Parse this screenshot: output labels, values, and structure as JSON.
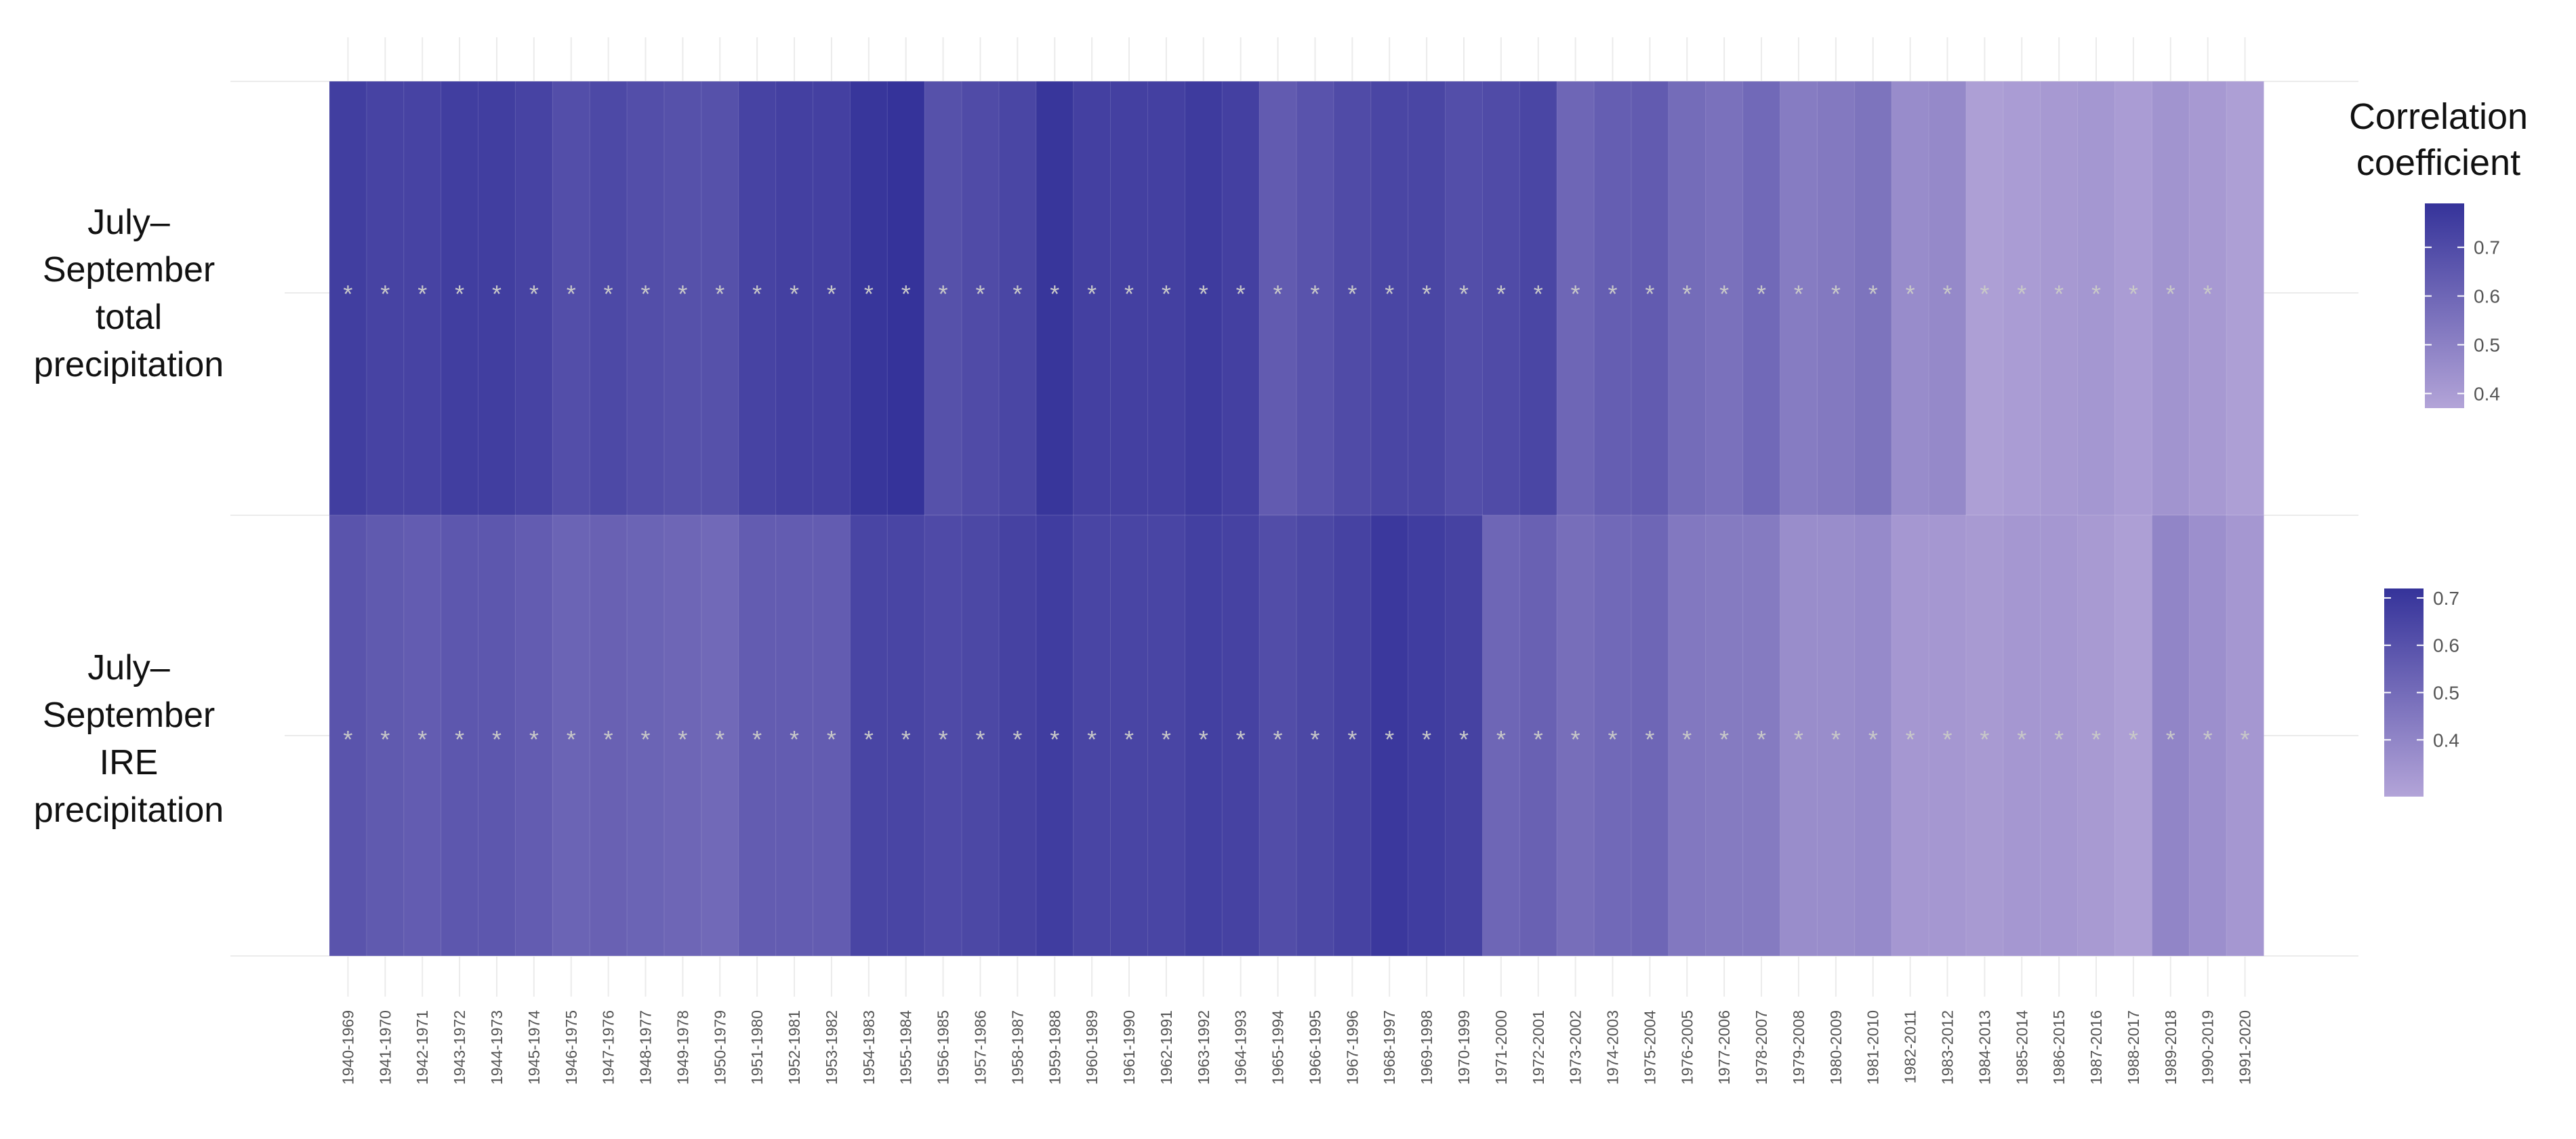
{
  "chart_data": {
    "type": "heatmap",
    "x_labels": [
      "1940-1969",
      "1941-1970",
      "1942-1971",
      "1943-1972",
      "1944-1973",
      "1945-1974",
      "1946-1975",
      "1947-1976",
      "1948-1977",
      "1949-1978",
      "1950-1979",
      "1951-1980",
      "1952-1981",
      "1953-1982",
      "1954-1983",
      "1955-1984",
      "1956-1985",
      "1957-1986",
      "1958-1987",
      "1959-1988",
      "1960-1989",
      "1961-1990",
      "1962-1991",
      "1963-1992",
      "1964-1993",
      "1965-1994",
      "1966-1995",
      "1967-1996",
      "1968-1997",
      "1969-1998",
      "1970-1999",
      "1971-2000",
      "1972-2001",
      "1973-2002",
      "1974-2003",
      "1975-2004",
      "1976-2005",
      "1977-2006",
      "1978-2007",
      "1979-2008",
      "1980-2009",
      "1981-2010",
      "1982-2011",
      "1983-2012",
      "1984-2013",
      "1985-2014",
      "1986-2015",
      "1987-2016",
      "1988-2017",
      "1989-2018",
      "1990-2019",
      "1991-2020"
    ],
    "rows": [
      {
        "label_lines": [
          "July–",
          "September",
          "total",
          "precipitation"
        ],
        "values": [
          0.75,
          0.73,
          0.73,
          0.75,
          0.75,
          0.73,
          0.69,
          0.71,
          0.69,
          0.68,
          0.68,
          0.73,
          0.74,
          0.74,
          0.78,
          0.79,
          0.68,
          0.7,
          0.72,
          0.78,
          0.74,
          0.74,
          0.74,
          0.76,
          0.74,
          0.64,
          0.67,
          0.7,
          0.72,
          0.72,
          0.69,
          0.7,
          0.72,
          0.6,
          0.63,
          0.64,
          0.58,
          0.56,
          0.59,
          0.52,
          0.53,
          0.55,
          0.46,
          0.47,
          0.39,
          0.4,
          0.41,
          0.42,
          0.4,
          0.43,
          0.41,
          0.39
        ],
        "significant": [
          true,
          true,
          true,
          true,
          true,
          true,
          true,
          true,
          true,
          true,
          true,
          true,
          true,
          true,
          true,
          true,
          true,
          true,
          true,
          true,
          true,
          true,
          true,
          true,
          true,
          true,
          true,
          true,
          true,
          true,
          true,
          true,
          true,
          true,
          true,
          true,
          true,
          true,
          true,
          true,
          true,
          true,
          true,
          true,
          true,
          true,
          true,
          true,
          true,
          true,
          true,
          false
        ],
        "legend": {
          "title_lines": [
            "Correlation",
            "coefficient"
          ],
          "min": 0.37,
          "max": 0.79,
          "ticks": [
            0.4,
            0.5,
            0.6,
            0.7
          ]
        }
      },
      {
        "label_lines": [
          "July–",
          "September",
          "IRE",
          "precipitation"
        ],
        "values": [
          0.59,
          0.57,
          0.56,
          0.58,
          0.58,
          0.56,
          0.53,
          0.54,
          0.53,
          0.52,
          0.51,
          0.56,
          0.56,
          0.56,
          0.65,
          0.65,
          0.63,
          0.64,
          0.66,
          0.68,
          0.65,
          0.65,
          0.65,
          0.67,
          0.66,
          0.62,
          0.64,
          0.66,
          0.7,
          0.68,
          0.66,
          0.52,
          0.54,
          0.49,
          0.51,
          0.52,
          0.45,
          0.44,
          0.44,
          0.37,
          0.37,
          0.38,
          0.33,
          0.33,
          0.32,
          0.33,
          0.33,
          0.32,
          0.3,
          0.4,
          0.36,
          0.33
        ],
        "significant": [
          true,
          true,
          true,
          true,
          true,
          true,
          true,
          true,
          true,
          true,
          true,
          true,
          true,
          true,
          true,
          true,
          true,
          true,
          true,
          true,
          true,
          true,
          true,
          true,
          true,
          true,
          true,
          true,
          true,
          true,
          true,
          true,
          true,
          true,
          true,
          true,
          true,
          true,
          true,
          true,
          true,
          true,
          true,
          true,
          true,
          true,
          true,
          true,
          true,
          true,
          true,
          true
        ],
        "legend": {
          "title_lines": [],
          "min": 0.28,
          "max": 0.72,
          "ticks": [
            0.4,
            0.5,
            0.6,
            0.7
          ]
        }
      }
    ],
    "significance_marker": "*",
    "colors": {
      "low": "#b3a4d8",
      "high": "#35339a",
      "marker": "#c8c8c8",
      "grid": "#ebebeb"
    }
  }
}
